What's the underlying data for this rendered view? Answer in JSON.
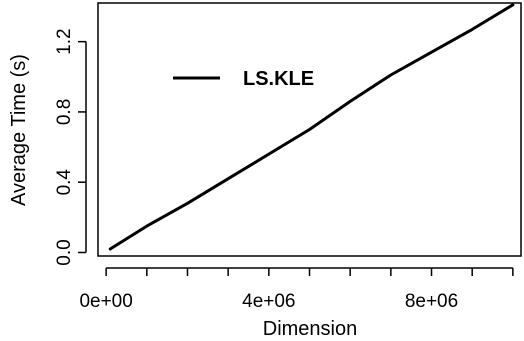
{
  "chart_data": {
    "type": "line",
    "title": "",
    "xlabel": "Dimension",
    "ylabel": "Average Time (s)",
    "xlim": [
      -200000,
      10200000
    ],
    "ylim": [
      -0.02,
      1.42
    ],
    "x_ticks": [
      0,
      1000000,
      2000000,
      3000000,
      4000000,
      5000000,
      6000000,
      7000000,
      8000000,
      9000000,
      10000000
    ],
    "x_tick_labels": [
      {
        "value": 0,
        "label": "0e+00"
      },
      {
        "value": 4000000,
        "label": "4e+06"
      },
      {
        "value": 8000000,
        "label": "8e+06"
      }
    ],
    "y_ticks": [
      {
        "value": 0.0,
        "label": "0.0"
      },
      {
        "value": 0.4,
        "label": "0.4"
      },
      {
        "value": 0.8,
        "label": "0.8"
      },
      {
        "value": 1.2,
        "label": "1.2"
      }
    ],
    "grid": false,
    "legend": {
      "position": "top-left",
      "entries": [
        {
          "name": "LS.KLE",
          "color": "#000000"
        }
      ]
    },
    "series": [
      {
        "name": "LS.KLE",
        "color": "#000000",
        "x": [
          100000,
          1000000,
          2000000,
          3000000,
          4000000,
          5000000,
          6000000,
          7000000,
          8000000,
          9000000,
          10000000
        ],
        "y": [
          0.02,
          0.15,
          0.28,
          0.42,
          0.56,
          0.7,
          0.86,
          1.01,
          1.14,
          1.27,
          1.41
        ]
      }
    ]
  }
}
